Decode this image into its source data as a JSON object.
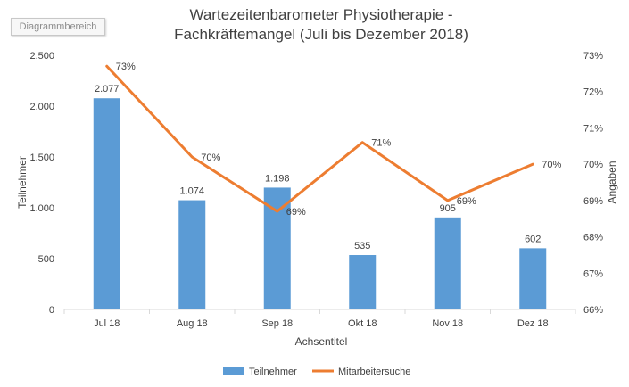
{
  "area_tag": "Diagrammbereich",
  "chart_data": {
    "type": "bar",
    "title_lines": [
      "Wartezeitenbarometer Physiotherapie -",
      "Fachkräftemangel (Juli bis Dezember 2018)"
    ],
    "categories": [
      "Jul 18",
      "Aug 18",
      "Sep 18",
      "Okt 18",
      "Nov 18",
      "Dez 18"
    ],
    "xlabel": "Achsentitel",
    "ylabel": "Teilnehmer",
    "y2label": "Angaben",
    "ylim": [
      0,
      2500
    ],
    "y_ticks": [
      0,
      500,
      1000,
      1500,
      2000,
      2500
    ],
    "y_tick_labels": [
      "0",
      "500",
      "1.000",
      "1.500",
      "2.000",
      "2.500"
    ],
    "y2lim": [
      0.66,
      0.73
    ],
    "y2_ticks": [
      0.66,
      0.67,
      0.68,
      0.69,
      0.7,
      0.71,
      0.72,
      0.73
    ],
    "y2_tick_labels": [
      "66%",
      "67%",
      "68%",
      "69%",
      "70%",
      "71%",
      "72%",
      "73%"
    ],
    "grid": false,
    "legend_position": "bottom",
    "series": [
      {
        "name": "Teilnehmer",
        "type": "bar",
        "axis": "left",
        "color": "#5b9bd5",
        "values": [
          2077,
          1074,
          1198,
          535,
          905,
          602
        ],
        "labels": [
          "2.077",
          "1.074",
          "1.198",
          "535",
          "905",
          "602"
        ]
      },
      {
        "name": "Mitarbeitersuche",
        "type": "line",
        "axis": "right",
        "color": "#ed7d31",
        "values": [
          0.727,
          0.702,
          0.687,
          0.706,
          0.69,
          0.7
        ],
        "labels": [
          "73%",
          "70%",
          "69%",
          "71%",
          "69%",
          "70%"
        ]
      }
    ]
  }
}
